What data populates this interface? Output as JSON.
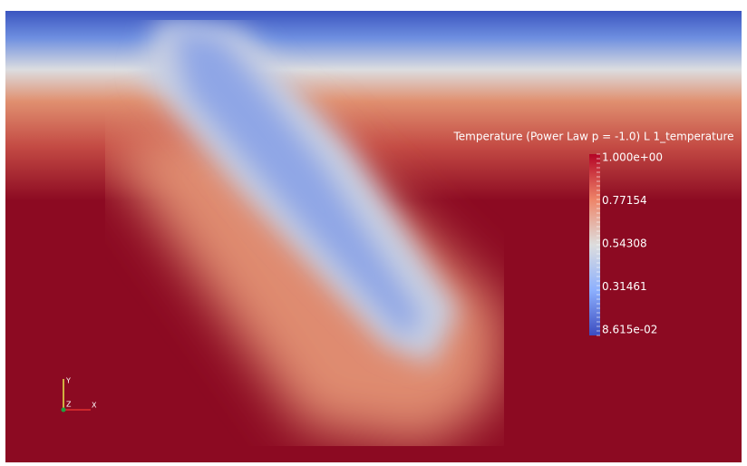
{
  "legend": {
    "title": "Temperature (Power Law p = -1.0) L 1_temperature",
    "labels": [
      "1.000e+00",
      "0.77154",
      "0.54308",
      "0.31461",
      "8.615e-02"
    ]
  },
  "axes": {
    "y": "Y",
    "z": "Z",
    "x": "X"
  }
}
